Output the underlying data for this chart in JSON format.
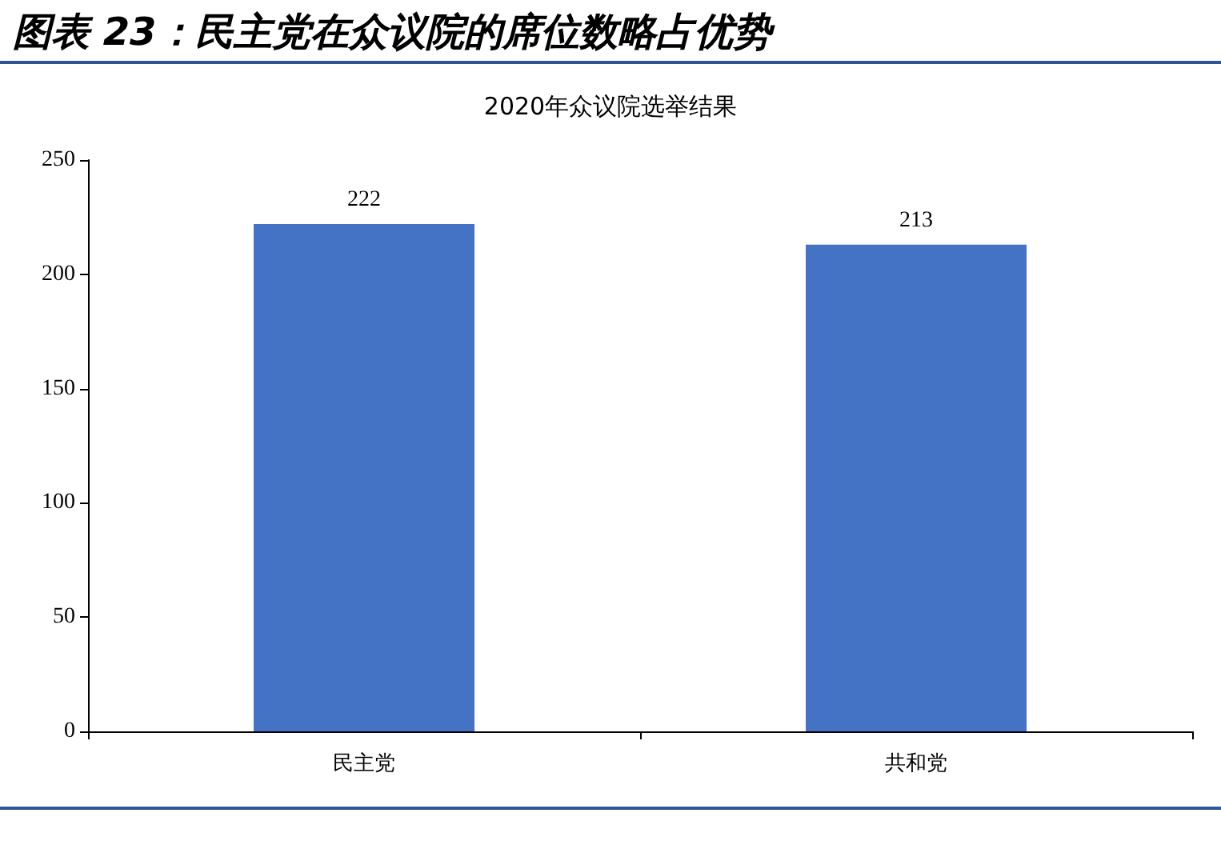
{
  "chart_data": {
    "type": "bar",
    "title": "图表 23：民主党在众议院的席位数略占优势",
    "subtitle": "2020年众议院选举结果",
    "categories": [
      "民主党",
      "共和党"
    ],
    "values": [
      222,
      213
    ],
    "color": "#4472c4",
    "ylim": [
      0,
      250
    ],
    "yticks": [
      0,
      50,
      100,
      150,
      200,
      250
    ],
    "grid": false,
    "data_labels": true
  }
}
